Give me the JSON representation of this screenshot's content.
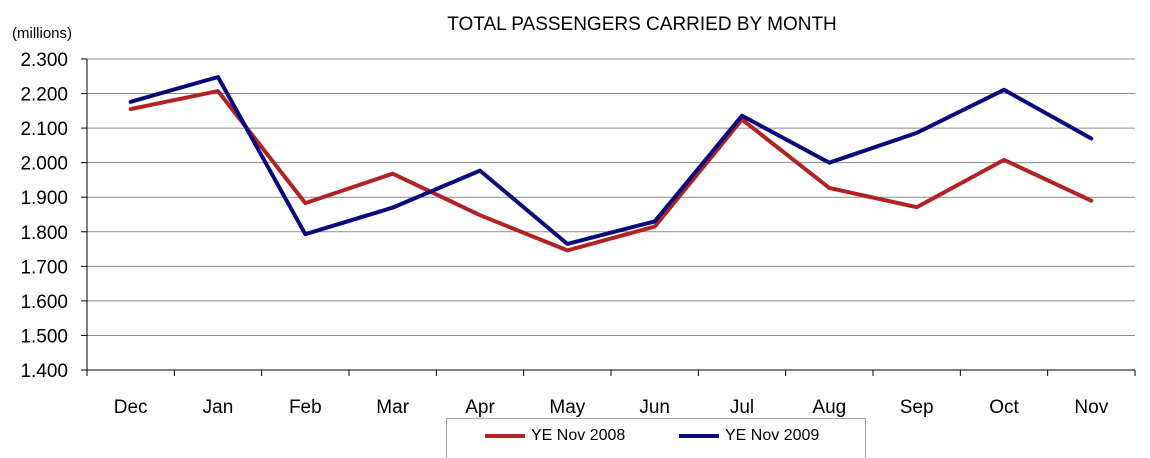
{
  "chart_data": {
    "type": "line",
    "title": "TOTAL PASSENGERS CARRIED BY MONTH",
    "unit_label": "(millions)",
    "ylabel": "",
    "xlabel": "",
    "ylim": [
      1.4,
      2.3
    ],
    "yticks": [
      "1.400",
      "1.500",
      "1.600",
      "1.700",
      "1.800",
      "1.900",
      "2.000",
      "2.100",
      "2.200",
      "2.300"
    ],
    "categories": [
      "Dec",
      "Jan",
      "Feb",
      "Mar",
      "Apr",
      "May",
      "Jun",
      "Jul",
      "Aug",
      "Sep",
      "Oct",
      "Nov"
    ],
    "grid": true,
    "legend_placement": "bottom",
    "series": [
      {
        "name": "YE Nov 2008",
        "color": "#b22222",
        "values": [
          2.155,
          2.207,
          1.883,
          1.968,
          1.848,
          1.746,
          1.815,
          2.125,
          1.927,
          1.871,
          2.008,
          1.89
        ]
      },
      {
        "name": "YE Nov 2009",
        "color": "#0a0a7f",
        "values": [
          2.176,
          2.248,
          1.793,
          1.87,
          1.977,
          1.765,
          1.83,
          2.136,
          2.0,
          2.086,
          2.211,
          2.07
        ]
      }
    ]
  }
}
